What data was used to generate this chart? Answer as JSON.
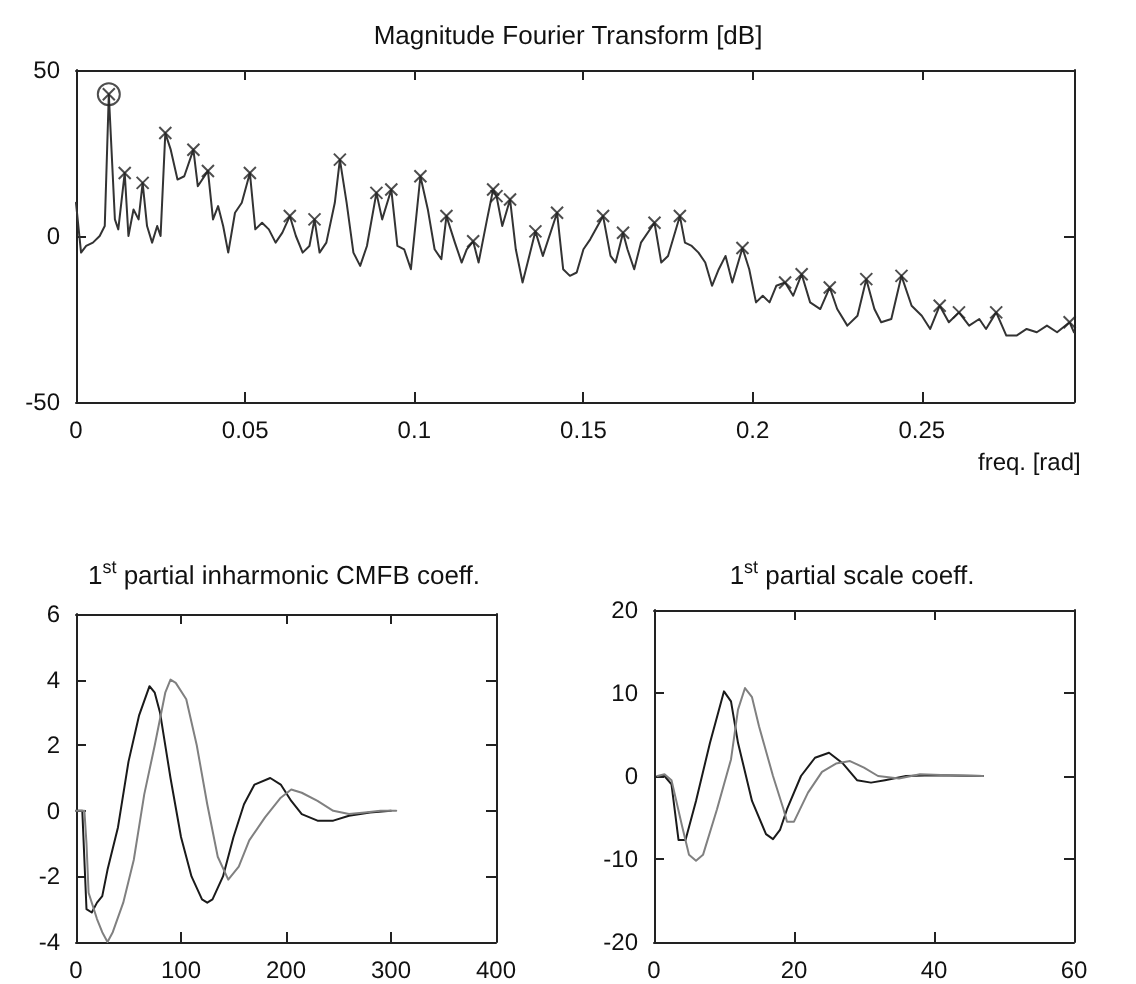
{
  "chart_data": [
    {
      "type": "line",
      "title": "Magnitude Fourier Transform [dB]",
      "xlabel": "freq. [rad]",
      "xlim": [
        0,
        0.295
      ],
      "xticks": [
        0,
        0.05,
        0.1,
        0.15,
        0.2,
        0.25
      ],
      "ylim": [
        -50,
        50
      ],
      "yticks": [
        -50,
        0,
        50
      ],
      "grid": false,
      "line_style": "solid",
      "series": [
        {
          "type": "line",
          "color": "#333333",
          "marker": "none",
          "x": [
            0,
            0.0015,
            0.003,
            0.005,
            0.007,
            0.0085,
            0.0097,
            0.0115,
            0.0125,
            0.0144,
            0.0155,
            0.017,
            0.0185,
            0.0197,
            0.021,
            0.0225,
            0.024,
            0.025,
            0.0264,
            0.028,
            0.03,
            0.032,
            0.0347,
            0.036,
            0.039,
            0.0405,
            0.042,
            0.0435,
            0.045,
            0.047,
            0.049,
            0.0514,
            0.053,
            0.055,
            0.057,
            0.059,
            0.061,
            0.0632,
            0.065,
            0.067,
            0.069,
            0.0705,
            0.072,
            0.074,
            0.0765,
            0.078,
            0.08,
            0.082,
            0.084,
            0.086,
            0.0888,
            0.0905,
            0.0932,
            0.095,
            0.097,
            0.099,
            0.1018,
            0.104,
            0.106,
            0.108,
            0.1095,
            0.112,
            0.114,
            0.1155,
            0.1174,
            0.119,
            0.1215,
            0.1233,
            0.1243,
            0.126,
            0.1283,
            0.13,
            0.132,
            0.1335,
            0.1358,
            0.138,
            0.1422,
            0.144,
            0.146,
            0.148,
            0.15,
            0.152,
            0.1558,
            0.158,
            0.1595,
            0.1617,
            0.163,
            0.165,
            0.167,
            0.171,
            0.173,
            0.175,
            0.1785,
            0.18,
            0.182,
            0.184,
            0.186,
            0.188,
            0.19,
            0.192,
            0.194,
            0.197,
            0.199,
            0.201,
            0.203,
            0.205,
            0.207,
            0.2096,
            0.212,
            0.2145,
            0.217,
            0.22,
            0.2228,
            0.225,
            0.228,
            0.231,
            0.2336,
            0.236,
            0.238,
            0.241,
            0.244,
            0.247,
            0.25,
            0.2525,
            0.2553,
            0.258,
            0.261,
            0.264,
            0.267,
            0.269,
            0.272,
            0.275,
            0.278,
            0.281,
            0.284,
            0.287,
            0.29,
            0.2937,
            0.295
          ],
          "values": [
            10,
            -5,
            -3,
            -2,
            0,
            3,
            42.7,
            5,
            2,
            19,
            0,
            8,
            5,
            16,
            3,
            -2,
            3,
            0,
            31,
            26,
            17,
            18,
            26,
            15,
            19.6,
            5,
            9,
            3,
            -5,
            7,
            10,
            19,
            2,
            4,
            2,
            -2,
            1,
            6,
            0,
            -5,
            -3,
            5,
            -5,
            -2,
            10,
            23,
            10,
            -5,
            -9,
            -3,
            13,
            5,
            14,
            -3,
            -4,
            -10,
            18,
            8,
            -4,
            -7,
            6,
            -2,
            -8,
            -4,
            -1.6,
            -8,
            5,
            14,
            12,
            3,
            11,
            -4,
            -14,
            -8,
            1.4,
            -6,
            7,
            -10,
            -12,
            -11,
            -4,
            -1,
            6,
            -6,
            -8,
            1,
            -4,
            -10,
            -2,
            4,
            -8,
            -6,
            6,
            -2,
            -3,
            -5,
            -8,
            -15,
            -10,
            -6,
            -14,
            -3.6,
            -10,
            -20,
            -18,
            -20,
            -15,
            -14,
            -18,
            -11.5,
            -20,
            -22,
            -15.5,
            -22,
            -27,
            -24,
            -13,
            -22,
            -26,
            -25,
            -12,
            -21,
            -24,
            -28,
            -21,
            -26,
            -23,
            -27,
            -25,
            -28,
            -23,
            -30,
            -30,
            -28,
            -29,
            -27,
            -29,
            -26,
            -29
          ]
        },
        {
          "type": "scatter",
          "color": "#222222",
          "marker": "cross",
          "x": [
            0.0097,
            0.0144,
            0.0197,
            0.0264,
            0.0347,
            0.039,
            0.0514,
            0.0632,
            0.0705,
            0.078,
            0.0888,
            0.0932,
            0.1018,
            0.1095,
            0.1174,
            0.1233,
            0.1243,
            0.1283,
            0.1358,
            0.1422,
            0.1558,
            0.1617,
            0.171,
            0.1785,
            0.197,
            0.2096,
            0.2145,
            0.2228,
            0.2336,
            0.244,
            0.2553,
            0.261,
            0.272,
            0.2937
          ],
          "values": [
            42.7,
            19,
            16,
            31,
            26,
            19.6,
            19,
            6,
            5,
            23,
            13,
            14,
            18,
            6,
            -1.6,
            14,
            12,
            11,
            1.4,
            7,
            6,
            1,
            4,
            6,
            -3.6,
            -14,
            -11.5,
            -15.5,
            -13,
            -12,
            -21,
            -23,
            -23,
            -26
          ]
        },
        {
          "type": "scatter",
          "color": "#222222",
          "marker": "circle",
          "x": [
            0.0097
          ],
          "values": [
            42.7
          ]
        }
      ]
    },
    {
      "type": "line",
      "title": "1$^{st}$ partial inharmonic CMFB coeff.",
      "xlim": [
        0,
        400
      ],
      "xticks": [
        0,
        100,
        200,
        300,
        400
      ],
      "ylim": [
        -4,
        6
      ],
      "yticks": [
        -4,
        -2,
        0,
        2,
        4,
        6
      ],
      "grid": false,
      "line_style": "solid",
      "series": [
        {
          "type": "line",
          "color": "#1a1a1a",
          "marker": "none",
          "x": [
            0,
            6,
            10,
            15,
            20,
            25,
            30,
            40,
            50,
            60,
            70,
            75,
            80,
            90,
            100,
            110,
            120,
            125,
            130,
            140,
            150,
            160,
            170,
            185,
            195,
            205,
            215,
            230,
            245,
            260,
            280,
            300
          ],
          "values": [
            0,
            0,
            -3,
            -3.1,
            -2.8,
            -2.6,
            -1.8,
            -0.5,
            1.5,
            2.9,
            3.8,
            3.6,
            3,
            1,
            -0.8,
            -2,
            -2.7,
            -2.8,
            -2.7,
            -2,
            -0.8,
            0.2,
            0.8,
            1,
            0.8,
            0.3,
            -0.1,
            -0.3,
            -0.3,
            -0.15,
            -0.05,
            0
          ]
        },
        {
          "type": "line",
          "color": "#808080",
          "marker": "none",
          "x": [
            0,
            8,
            10,
            12,
            15,
            20,
            25,
            30,
            35,
            45,
            55,
            65,
            75,
            85,
            90,
            95,
            105,
            115,
            125,
            135,
            145,
            155,
            165,
            180,
            195,
            205,
            215,
            230,
            245,
            260,
            275,
            290,
            305
          ],
          "values": [
            0,
            0,
            -1,
            -2.5,
            -2.8,
            -3.3,
            -3.7,
            -4,
            -3.7,
            -2.8,
            -1.5,
            0.5,
            2,
            3.6,
            4,
            3.9,
            3.4,
            2,
            0.2,
            -1.4,
            -2.1,
            -1.7,
            -0.9,
            -0.2,
            0.4,
            0.65,
            0.55,
            0.3,
            0,
            -0.1,
            -0.05,
            0,
            0
          ]
        }
      ]
    },
    {
      "type": "line",
      "title": "1$^{st}$ partial scale coeff.",
      "xlim": [
        0,
        60
      ],
      "xticks": [
        0,
        20,
        40,
        60
      ],
      "ylim": [
        -20,
        20
      ],
      "yticks": [
        -20,
        -10,
        0,
        10,
        20
      ],
      "grid": false,
      "line_style": "solid",
      "series": [
        {
          "type": "line",
          "color": "#1a1a1a",
          "marker": "none",
          "x": [
            0.5,
            1.5,
            2.5,
            3.5,
            4.5,
            6,
            8,
            10,
            11,
            12,
            14,
            16,
            17,
            18,
            19,
            21,
            23,
            25,
            27,
            29,
            31,
            33,
            36,
            40,
            47
          ],
          "values": [
            0,
            0,
            -1,
            -7.7,
            -7.7,
            -3,
            4,
            10.2,
            9,
            4,
            -3,
            -7,
            -7.6,
            -6.5,
            -4,
            0,
            2.2,
            2.8,
            1.5,
            -0.5,
            -0.8,
            -0.5,
            0,
            0.1,
            0
          ]
        },
        {
          "type": "line",
          "color": "#808080",
          "marker": "none",
          "x": [
            0.5,
            1.5,
            2.5,
            4,
            5,
            6,
            7,
            9,
            11,
            12,
            13,
            14,
            15,
            17,
            18.5,
            19,
            20,
            22,
            24,
            26,
            28,
            30,
            32,
            35,
            38,
            42,
            47
          ],
          "values": [
            0,
            0.2,
            -0.5,
            -6,
            -9.5,
            -10.2,
            -9.5,
            -4,
            2,
            8,
            10.6,
            9.5,
            6,
            0,
            -4,
            -5.5,
            -5.5,
            -2,
            0.5,
            1.5,
            1.8,
            1,
            0,
            -0.3,
            0.2,
            0.1,
            0
          ]
        }
      ]
    }
  ]
}
